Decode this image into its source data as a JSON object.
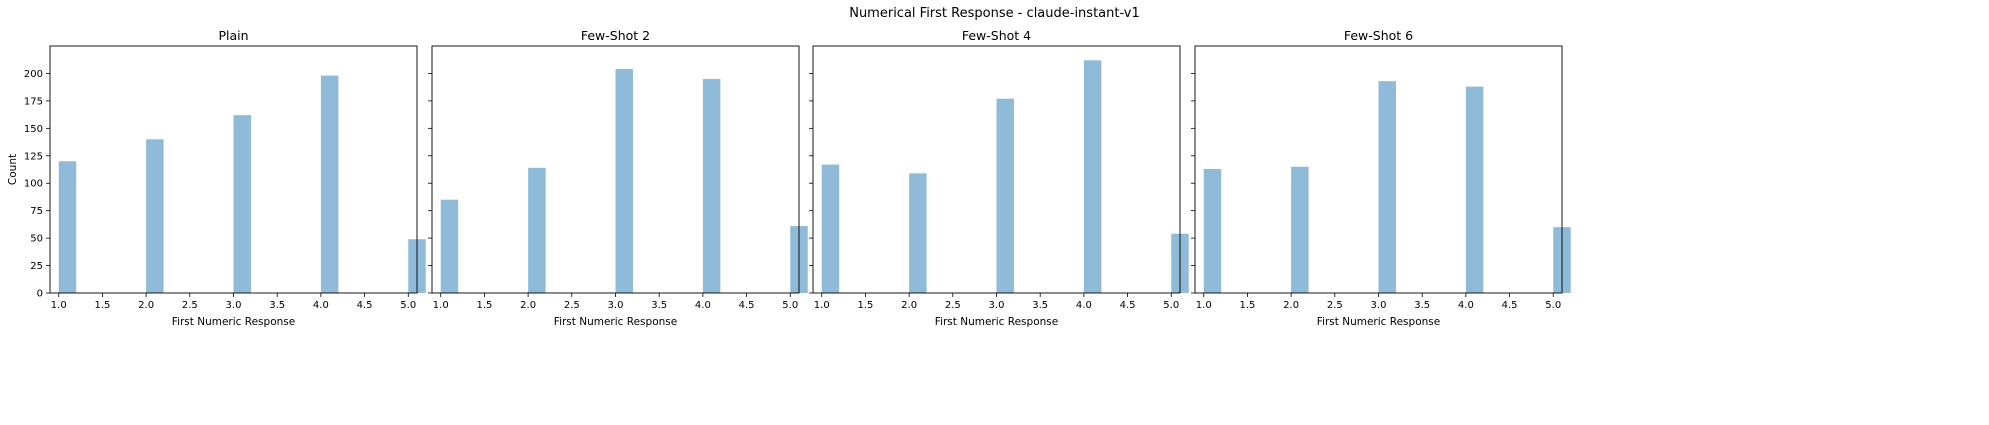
{
  "suptitle": "Numerical First Response - claude-instant-v1",
  "chart_data": [
    {
      "type": "bar",
      "title": "Plain",
      "xlabel": "First Numeric Response",
      "ylabel": "Count",
      "x": [
        1.0,
        2.0,
        3.0,
        4.0,
        5.0
      ],
      "values": [
        120,
        140,
        162,
        198,
        49
      ],
      "bin_width": 0.2,
      "xlim": [
        0.9,
        5.1
      ],
      "ylim": [
        0,
        225
      ],
      "xticks": [
        "1.0",
        "1.5",
        "2.0",
        "2.5",
        "3.0",
        "3.5",
        "4.0",
        "4.5",
        "5.0"
      ],
      "yticks": [
        "0",
        "25",
        "50",
        "75",
        "100",
        "125",
        "150",
        "175",
        "200"
      ],
      "color": "#8fbbd9",
      "grid": false
    },
    {
      "type": "bar",
      "title": "Few-Shot 2",
      "xlabel": "First Numeric Response",
      "ylabel": "",
      "x": [
        1.0,
        2.0,
        3.0,
        4.0,
        5.0
      ],
      "values": [
        85,
        114,
        204,
        195,
        61
      ],
      "bin_width": 0.2,
      "xlim": [
        0.9,
        5.1
      ],
      "ylim": [
        0,
        225
      ],
      "xticks": [
        "1.0",
        "1.5",
        "2.0",
        "2.5",
        "3.0",
        "3.5",
        "4.0",
        "4.5",
        "5.0"
      ],
      "color": "#8fbbd9",
      "grid": false
    },
    {
      "type": "bar",
      "title": "Few-Shot 4",
      "xlabel": "First Numeric Response",
      "ylabel": "",
      "x": [
        1.0,
        2.0,
        3.0,
        4.0,
        5.0
      ],
      "values": [
        117,
        109,
        177,
        212,
        54
      ],
      "bin_width": 0.2,
      "xlim": [
        0.9,
        5.1
      ],
      "ylim": [
        0,
        225
      ],
      "xticks": [
        "1.0",
        "1.5",
        "2.0",
        "2.5",
        "3.0",
        "3.5",
        "4.0",
        "4.5",
        "5.0"
      ],
      "color": "#8fbbd9",
      "grid": false
    },
    {
      "type": "bar",
      "title": "Few-Shot 6",
      "xlabel": "First Numeric Response",
      "ylabel": "",
      "x": [
        1.0,
        2.0,
        3.0,
        4.0,
        5.0
      ],
      "values": [
        113,
        115,
        193,
        188,
        60
      ],
      "bin_width": 0.2,
      "xlim": [
        0.9,
        5.1
      ],
      "ylim": [
        0,
        225
      ],
      "xticks": [
        "1.0",
        "1.5",
        "2.0",
        "2.5",
        "3.0",
        "3.5",
        "4.0",
        "4.5",
        "5.0"
      ],
      "color": "#8fbbd9",
      "grid": false
    }
  ]
}
